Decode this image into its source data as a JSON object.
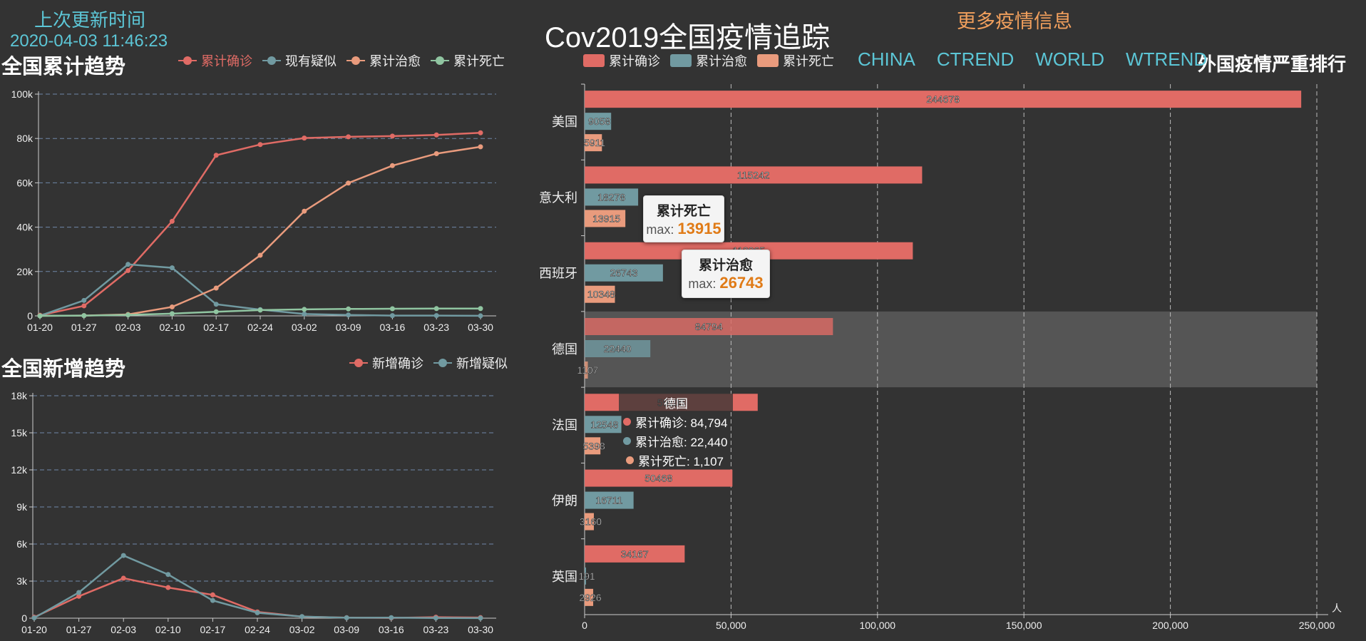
{
  "header": {
    "updated_label": "上次更新时间",
    "updated_time": "2020-04-03 11:46:23",
    "title": "Cov2019全国疫情追踪",
    "more_info": "更多疫情信息"
  },
  "nav": [
    "CHINA",
    "CTREND",
    "WORLD",
    "WTREND"
  ],
  "colors": {
    "confirmed": "#e06b65",
    "suspect": "#719aa1",
    "cured": "#e99b7d",
    "death": "#90c5a1",
    "accent": "#5cc6d6",
    "orange": "#f2a05d"
  },
  "chart_data": [
    {
      "type": "line",
      "title": "全国累计趋势",
      "x": [
        "01-20",
        "01-27",
        "02-03",
        "02-10",
        "02-17",
        "02-24",
        "03-02",
        "03-09",
        "03-16",
        "03-23",
        "03-30"
      ],
      "ylim": [
        0,
        100000
      ],
      "yticks": [
        "0",
        "20k",
        "40k",
        "60k",
        "80k",
        "100k"
      ],
      "legend": "top-right",
      "series": [
        {
          "name": "累计确诊",
          "values": [
            291,
            4515,
            20438,
            42638,
            72436,
            77262,
            80174,
            80754,
            81077,
            81601,
            82545
          ]
        },
        {
          "name": "现有疑似",
          "values": [
            54,
            6973,
            23214,
            21675,
            5240,
            2824,
            851,
            421,
            128,
            134,
            21
          ]
        },
        {
          "name": "累计治愈",
          "values": [
            25,
            126,
            632,
            4035,
            12552,
            27323,
            47204,
            59897,
            67749,
            73159,
            76238
          ]
        },
        {
          "name": "累计死亡",
          "values": [
            6,
            106,
            425,
            1016,
            1868,
            2595,
            2915,
            3119,
            3218,
            3276,
            3306
          ]
        }
      ]
    },
    {
      "type": "line",
      "title": "全国新增趋势",
      "x": [
        "01-20",
        "01-27",
        "02-03",
        "02-10",
        "02-17",
        "02-24",
        "03-02",
        "03-09",
        "03-16",
        "03-23",
        "03-30"
      ],
      "ylim": [
        0,
        18000
      ],
      "yticks": [
        "0",
        "3k",
        "6k",
        "9k",
        "12k",
        "15k",
        "18k"
      ],
      "legend": "top-right",
      "series": [
        {
          "name": "新增确诊",
          "values": [
            77,
            1771,
            3235,
            2478,
            1886,
            508,
            125,
            40,
            21,
            78,
            48
          ]
        },
        {
          "name": "新增疑似",
          "values": [
            27,
            2077,
            5072,
            3536,
            1432,
            439,
            129,
            36,
            45,
            18,
            10
          ]
        }
      ]
    },
    {
      "type": "bar",
      "title": "外国疫情严重排行",
      "categories": [
        "美国",
        "意大利",
        "西班牙",
        "德国",
        "法国",
        "伊朗",
        "英国"
      ],
      "xlim": [
        0,
        250000
      ],
      "xticks": [
        "0",
        "50,000",
        "100,000",
        "150,000",
        "200,000",
        "250,000"
      ],
      "xunit": "人",
      "series": [
        {
          "name": "累计确诊",
          "values": [
            244678,
            115242,
            112065,
            84794,
            59105,
            50468,
            34167
          ]
        },
        {
          "name": "累计治愈",
          "values": [
            9058,
            18278,
            26743,
            22440,
            12548,
            16711,
            191
          ]
        },
        {
          "name": "累计死亡",
          "values": [
            5911,
            13915,
            10348,
            1107,
            5398,
            3160,
            2926
          ]
        }
      ]
    }
  ],
  "tooltips": {
    "death": {
      "title": "累计死亡",
      "label": "max: ",
      "value": "13915"
    },
    "cured": {
      "title": "累计治愈",
      "label": "max: ",
      "value": "26743"
    },
    "hover": {
      "title": "德国",
      "rows": [
        "累计确诊: 84,794",
        "累计治愈: 22,440",
        "累计死亡: 1,107"
      ]
    }
  }
}
